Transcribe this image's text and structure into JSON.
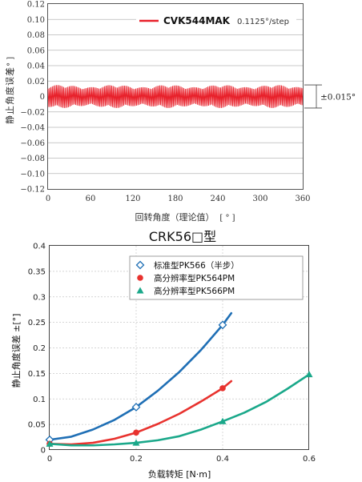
{
  "chart_data": [
    {
      "type": "line",
      "legend": {
        "name": "CVK544MAK",
        "step": "0.1125°/step",
        "color": "#e8202a",
        "placement": "top-right"
      },
      "ylabel": "静止角度误差",
      "yunit": "[ ° ]",
      "xlabel": "回转角度（理论值）",
      "xunit": "[ ° ]",
      "xlim": [
        0,
        360
      ],
      "ylim": [
        -0.12,
        0.12
      ],
      "x_ticks": [
        "0",
        "60",
        "120",
        "180",
        "240",
        "300",
        "360"
      ],
      "y_ticks": [
        "0.12",
        "0.10",
        "0.08",
        "0.06",
        "0.04",
        "0.02",
        "0",
        "−0.02",
        "−0.04",
        "−0.06",
        "−0.08",
        "−0.10",
        "−0.12"
      ],
      "band_annotation": "±0.015°",
      "amplitude": 0.015,
      "series": [
        {
          "name": "CVK544MAK",
          "color": "#e8202a",
          "amplitude_max": 0.015,
          "amplitude_min": 0.012,
          "x_range": [
            0,
            360
          ]
        }
      ],
      "grid": true
    },
    {
      "type": "line",
      "title": "CRK56□型",
      "xlabel": "负载转矩 [N·m]",
      "ylabel": "静止角度误差 ±[°]",
      "xlim": [
        0,
        0.6
      ],
      "ylim": [
        0,
        0.4
      ],
      "x_ticks": [
        "0",
        "0.2",
        "0.4",
        "0.6"
      ],
      "y_ticks": [
        "0",
        "0.05",
        "0.1",
        "0.15",
        "0.2",
        "0.25",
        "0.3",
        "0.35",
        "0.4"
      ],
      "legend_placement": "top-right",
      "grid": true,
      "series": [
        {
          "name": "标准型PK566（半步）",
          "color": "#1f6fb5",
          "marker": "diamond",
          "points": [
            [
              0,
              0.02
            ],
            [
              0.2,
              0.084
            ],
            [
              0.4,
              0.245
            ]
          ],
          "curve": [
            [
              0,
              0.02
            ],
            [
              0.05,
              0.026
            ],
            [
              0.1,
              0.04
            ],
            [
              0.15,
              0.059
            ],
            [
              0.2,
              0.084
            ],
            [
              0.25,
              0.116
            ],
            [
              0.3,
              0.153
            ],
            [
              0.35,
              0.196
            ],
            [
              0.4,
              0.245
            ],
            [
              0.42,
              0.268
            ]
          ]
        },
        {
          "name": "高分辨率型PK564PM",
          "color": "#e8322e",
          "marker": "circle",
          "points": [
            [
              0,
              0.012
            ],
            [
              0.2,
              0.034
            ],
            [
              0.4,
              0.121
            ]
          ],
          "curve": [
            [
              0,
              0.012
            ],
            [
              0.05,
              0.011
            ],
            [
              0.1,
              0.014
            ],
            [
              0.15,
              0.022
            ],
            [
              0.2,
              0.034
            ],
            [
              0.25,
              0.051
            ],
            [
              0.3,
              0.071
            ],
            [
              0.35,
              0.095
            ],
            [
              0.4,
              0.121
            ],
            [
              0.42,
              0.135
            ]
          ]
        },
        {
          "name": "高分辨率型PK566PM",
          "color": "#1aa88a",
          "marker": "triangle",
          "points": [
            [
              0,
              0.012
            ],
            [
              0.2,
              0.014
            ],
            [
              0.4,
              0.056
            ],
            [
              0.6,
              0.148
            ]
          ],
          "curve": [
            [
              0,
              0.012
            ],
            [
              0.05,
              0.009
            ],
            [
              0.1,
              0.009
            ],
            [
              0.15,
              0.011
            ],
            [
              0.2,
              0.014
            ],
            [
              0.25,
              0.019
            ],
            [
              0.3,
              0.027
            ],
            [
              0.35,
              0.04
            ],
            [
              0.4,
              0.056
            ],
            [
              0.45,
              0.073
            ],
            [
              0.5,
              0.094
            ],
            [
              0.55,
              0.12
            ],
            [
              0.6,
              0.148
            ]
          ]
        }
      ]
    }
  ]
}
